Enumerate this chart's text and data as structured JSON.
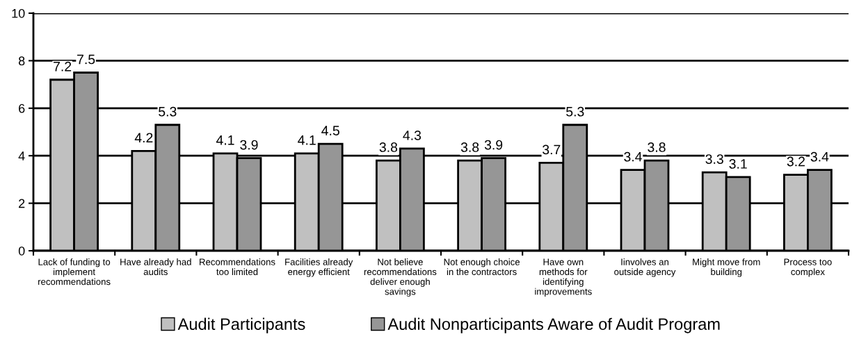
{
  "chart_data": {
    "type": "bar",
    "categories": [
      "Lack of funding to\nimplement\nrecommendations",
      "Have already had\naudits",
      "Recommendations\ntoo limited",
      "Facilities already\nenergy efficient",
      "Not believe\nrecommendations\ndeliver enough\nsavings",
      "Not enough choice\nin the contractors",
      "Have own\nmethods for\nidentifying\nimprovements",
      "Iinvolves an\noutside agency",
      "Might move from\nbuilding",
      "Process too\ncomplex"
    ],
    "series": [
      {
        "name": "Audit Participants",
        "color": "#c0c0c0",
        "values": [
          7.2,
          4.2,
          4.1,
          4.1,
          3.8,
          3.8,
          3.7,
          3.4,
          3.3,
          3.2
        ]
      },
      {
        "name": "Audit Nonparticipants Aware of Audit Program",
        "color": "#969696",
        "values": [
          7.5,
          5.3,
          3.9,
          4.5,
          4.3,
          3.9,
          5.3,
          3.8,
          3.1,
          3.4
        ]
      }
    ],
    "ylim": [
      0,
      10
    ],
    "yticks": [
      0,
      2,
      4,
      6,
      8,
      10
    ],
    "grid": "y",
    "legend": "bottom",
    "data_labels": true
  }
}
